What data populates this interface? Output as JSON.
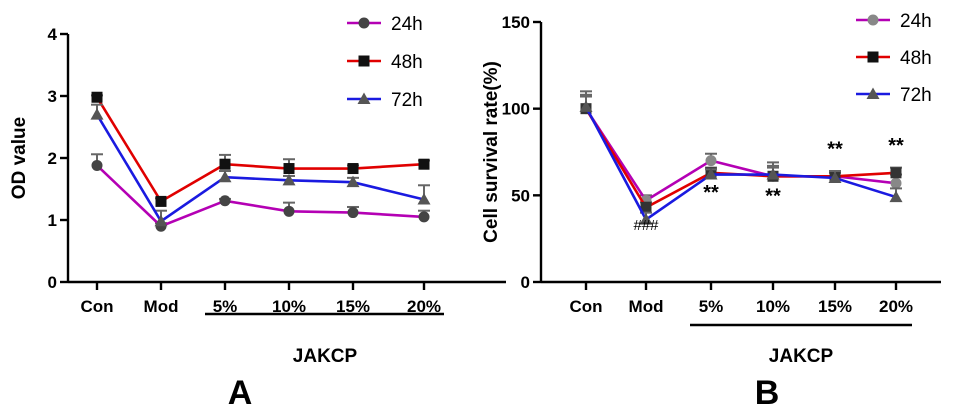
{
  "chart_data": [
    {
      "panel_label": "A",
      "type": "line",
      "ylabel": "OD value",
      "ylim": [
        0,
        4
      ],
      "yticks": [
        "0",
        "1",
        "2",
        "3",
        "4"
      ],
      "categories": [
        "Con",
        "Mod",
        "5%",
        "10%",
        "15%",
        "20%"
      ],
      "group_label": "JAKCP",
      "legend_position": "top-right",
      "grid": false,
      "series": [
        {
          "name": "24h",
          "color": "#B400B4",
          "marker": "circle",
          "values": [
            1.88,
            0.9,
            1.31,
            1.14,
            1.12,
            1.05
          ],
          "errors": [
            0.18,
            0.05,
            0.03,
            0.14,
            0.09,
            0.1
          ]
        },
        {
          "name": "48h",
          "color": "#E00000",
          "marker": "square",
          "values": [
            2.98,
            1.3,
            1.9,
            1.83,
            1.83,
            1.9
          ],
          "errors": [
            0.03,
            0.05,
            0.15,
            0.15,
            0.05,
            0.06
          ]
        },
        {
          "name": "72h",
          "color": "#1A1AE0",
          "marker": "triangle",
          "values": [
            2.7,
            0.98,
            1.69,
            1.64,
            1.61,
            1.33
          ],
          "errors": [
            0.16,
            0.17,
            0.1,
            0.07,
            0.07,
            0.23
          ]
        }
      ]
    },
    {
      "panel_label": "B",
      "type": "line",
      "ylabel": "Cell survival rate(%)",
      "ylim": [
        0,
        150
      ],
      "yticks": [
        "0",
        "50",
        "100",
        "150"
      ],
      "categories": [
        "Con",
        "Mod",
        "5%",
        "10%",
        "15%",
        "20%"
      ],
      "group_label": "JAKCP",
      "legend_position": "top-right",
      "grid": false,
      "series": [
        {
          "name": "24h",
          "color": "#B400B4",
          "marker": "circle",
          "values": [
            100,
            47,
            70,
            61,
            61,
            57
          ],
          "errors": [
            10,
            3,
            4,
            6,
            3,
            5
          ]
        },
        {
          "name": "48h",
          "color": "#E00000",
          "marker": "square",
          "values": [
            100,
            43,
            63,
            61,
            61,
            63
          ],
          "errors": [
            8,
            3,
            3,
            5,
            2,
            3
          ]
        },
        {
          "name": "72h",
          "color": "#1A1AE0",
          "marker": "triangle",
          "values": [
            101,
            36,
            62,
            62,
            60,
            49
          ],
          "errors": [
            6,
            4,
            3,
            7,
            4,
            5
          ]
        }
      ],
      "annotations": [
        {
          "text": "###",
          "category": "Mod",
          "y": 30
        },
        {
          "text": "**",
          "category": "5%",
          "y": 48
        },
        {
          "text": "**",
          "category": "10%",
          "y": 46
        },
        {
          "text": "**",
          "category": "15%",
          "y": 73
        },
        {
          "text": "**",
          "category": "20%",
          "y": 75
        }
      ]
    }
  ]
}
